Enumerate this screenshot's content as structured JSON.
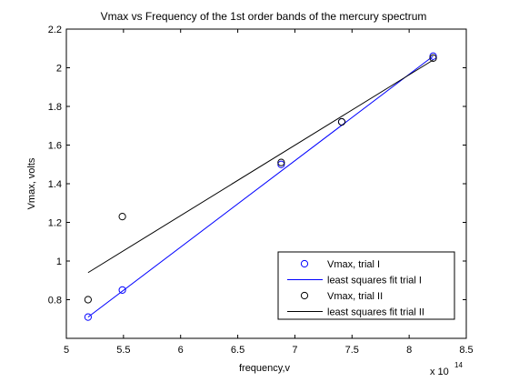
{
  "chart_data": {
    "type": "scatter",
    "title": "Vmax vs Frequency of the 1st order bands of the mercury spectrum",
    "xlabel": "frequency,v",
    "ylabel": "Vmax, volts",
    "x_multiplier": "x 10",
    "x_multiplier_exp": "14",
    "xlim": [
      5,
      8.5
    ],
    "ylim": [
      0.6,
      2.2
    ],
    "xticks": [
      "5",
      "5.5",
      "6",
      "6.5",
      "7",
      "7.5",
      "8",
      "8.5"
    ],
    "yticks": [
      "0.8",
      "1",
      "1.2",
      "1.4",
      "1.6",
      "1.8",
      "2",
      "2.2"
    ],
    "grid": false,
    "legend_position": "bottom-right",
    "series": [
      {
        "name": "Vmax, trial I",
        "kind": "points",
        "color": "#0000ff",
        "marker": "circle",
        "x": [
          5.19,
          5.49,
          6.88,
          7.41,
          8.21
        ],
        "y": [
          0.71,
          0.85,
          1.5,
          1.72,
          2.06
        ]
      },
      {
        "name": "least squares fit trial I",
        "kind": "line",
        "color": "#0000ff",
        "x": [
          5.19,
          8.21
        ],
        "y": [
          0.71,
          2.06
        ]
      },
      {
        "name": "Vmax, trial II",
        "kind": "points",
        "color": "#000000",
        "marker": "circle",
        "x": [
          5.19,
          5.49,
          6.88,
          7.41,
          8.21
        ],
        "y": [
          0.8,
          1.23,
          1.51,
          1.72,
          2.05
        ]
      },
      {
        "name": "least squares fit trial II",
        "kind": "line",
        "color": "#000000",
        "x": [
          5.19,
          8.21
        ],
        "y": [
          0.94,
          2.04
        ]
      }
    ]
  }
}
